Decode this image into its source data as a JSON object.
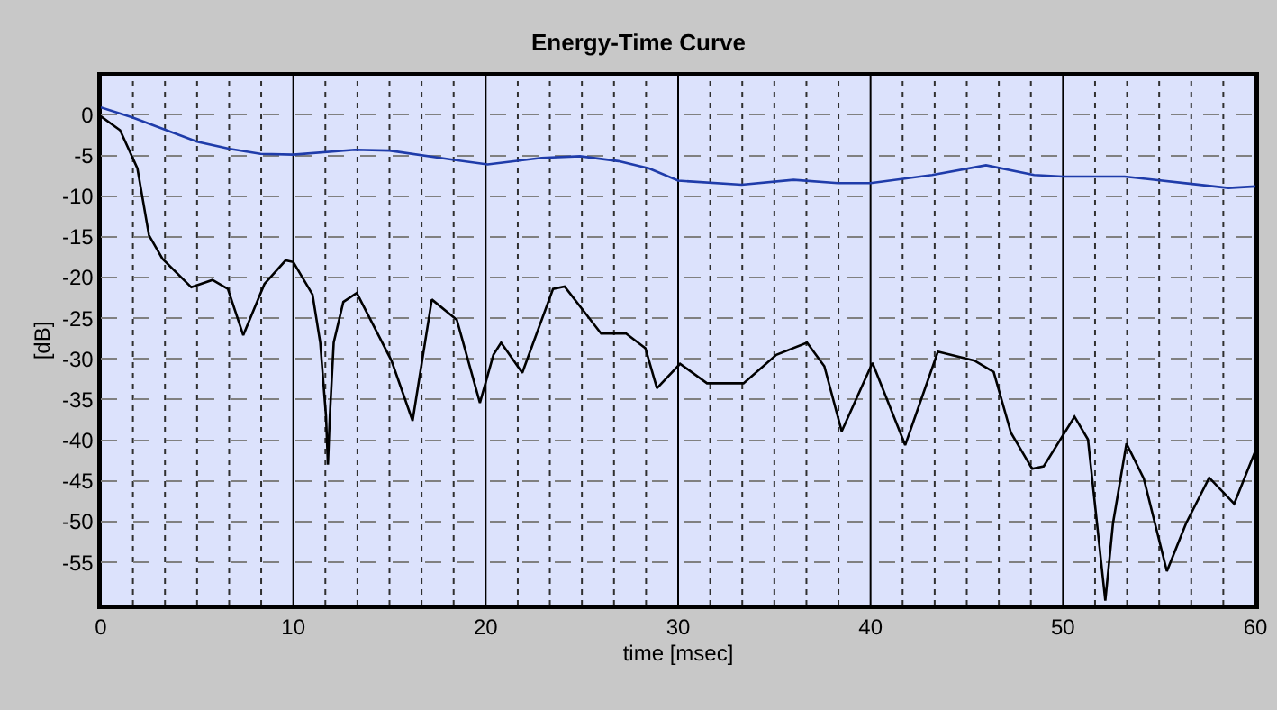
{
  "chart_data": {
    "type": "line",
    "title": "Energy-Time Curve",
    "xlabel": "time [msec]",
    "ylabel": "[dB]",
    "xlim": [
      0,
      60
    ],
    "ylim": [
      -60.3,
      4.8
    ],
    "xticks": [
      0,
      {
        "value": 1.667,
        "label": null
      },
      {
        "value": 3.333,
        "label": null
      },
      {
        "value": 5,
        "label": null
      },
      {
        "value": 6.667,
        "label": null
      },
      {
        "value": 8.333,
        "label": null
      },
      10,
      {
        "value": 11.667,
        "label": null
      },
      {
        "value": 13.333,
        "label": null
      },
      {
        "value": 15,
        "label": null
      },
      {
        "value": 16.667,
        "label": null
      },
      {
        "value": 18.333,
        "label": null
      },
      20,
      {
        "value": 21.667,
        "label": null
      },
      {
        "value": 23.333,
        "label": null
      },
      {
        "value": 25,
        "label": null
      },
      {
        "value": 26.667,
        "label": null
      },
      {
        "value": 28.333,
        "label": null
      },
      30,
      {
        "value": 31.667,
        "label": null
      },
      {
        "value": 33.333,
        "label": null
      },
      {
        "value": 35,
        "label": null
      },
      {
        "value": 36.667,
        "label": null
      },
      {
        "value": 38.333,
        "label": null
      },
      40,
      {
        "value": 41.667,
        "label": null
      },
      {
        "value": 43.333,
        "label": null
      },
      {
        "value": 45,
        "label": null
      },
      {
        "value": 46.667,
        "label": null
      },
      {
        "value": 48.333,
        "label": null
      },
      50,
      {
        "value": 51.667,
        "label": null
      },
      {
        "value": 53.333,
        "label": null
      },
      {
        "value": 55,
        "label": null
      },
      {
        "value": 56.667,
        "label": null
      },
      {
        "value": 58.333,
        "label": null
      },
      60
    ],
    "yticks": [
      0,
      -5,
      -10,
      -15,
      -20,
      -25,
      -30,
      -35,
      -40,
      -45,
      -50,
      -55
    ],
    "grid": true,
    "marker": "none",
    "line_style": "solid",
    "series": [
      {
        "color": "#1f3caa",
        "x": [
          0,
          1.6,
          5.0,
          6.7,
          8.3,
          10,
          13.2,
          15.0,
          18.2,
          20.1,
          22.9,
          24.9,
          26.9,
          28.5,
          30.0,
          33.3,
          36.0,
          38.3,
          40.0,
          43.2,
          46.0,
          48.5,
          50.0,
          53.2,
          56.7,
          58.6,
          60
        ],
        "values": [
          0.9,
          -0.3,
          -3.3,
          -4.2,
          -4.8,
          -4.9,
          -4.3,
          -4.4,
          -5.5,
          -6.1,
          -5.3,
          -5.1,
          -5.7,
          -6.6,
          -8.1,
          -8.6,
          -8.0,
          -8.4,
          -8.4,
          -7.4,
          -6.2,
          -7.4,
          -7.6,
          -7.6,
          -8.5,
          -9.0,
          -8.8
        ]
      },
      {
        "color": "#000000",
        "x": [
          0,
          1.0,
          1.9,
          2.5,
          3.2,
          4.7,
          5.8,
          6.6,
          7.4,
          8.5,
          9.6,
          10,
          11.0,
          11.4,
          11.7,
          11.8,
          11.9,
          12.1,
          12.6,
          13.3,
          15.1,
          16.2,
          17.2,
          18.5,
          19.7,
          20.4,
          20.8,
          21.9,
          23.5,
          24.1,
          26.0,
          27.3,
          28.3,
          28.9,
          30.1,
          31.5,
          33.4,
          35.1,
          36.7,
          37.6,
          38.5,
          40.1,
          41.8,
          43.5,
          45.4,
          46.4,
          47.3,
          48.4,
          49.0,
          50.6,
          51.3,
          52.2,
          52.6,
          53.3,
          54.2,
          55.4,
          56.4,
          57.6,
          58.9,
          60.0
        ],
        "values": [
          -0.2,
          -1.9,
          -6.6,
          -14.8,
          -17.7,
          -21.2,
          -20.3,
          -21.4,
          -27.1,
          -20.8,
          -17.9,
          -18.1,
          -22.1,
          -28,
          -37,
          -43,
          -37,
          -28,
          -23,
          -21.9,
          -30.2,
          -37.6,
          -22.7,
          -25.2,
          -35.4,
          -29.5,
          -28.0,
          -31.7,
          -21.4,
          -21.1,
          -26.9,
          -26.9,
          -28.7,
          -33.6,
          -30.6,
          -33.0,
          -33.0,
          -29.5,
          -28.0,
          -30.9,
          -38.9,
          -30.5,
          -40.6,
          -29.1,
          -30.2,
          -31.6,
          -39.1,
          -43.5,
          -43.2,
          -37.1,
          -39.9,
          -59.7,
          -50.2,
          -40.4,
          -44.7,
          -56.1,
          -50.2,
          -44.6,
          -47.8,
          -41.3
        ]
      }
    ]
  }
}
